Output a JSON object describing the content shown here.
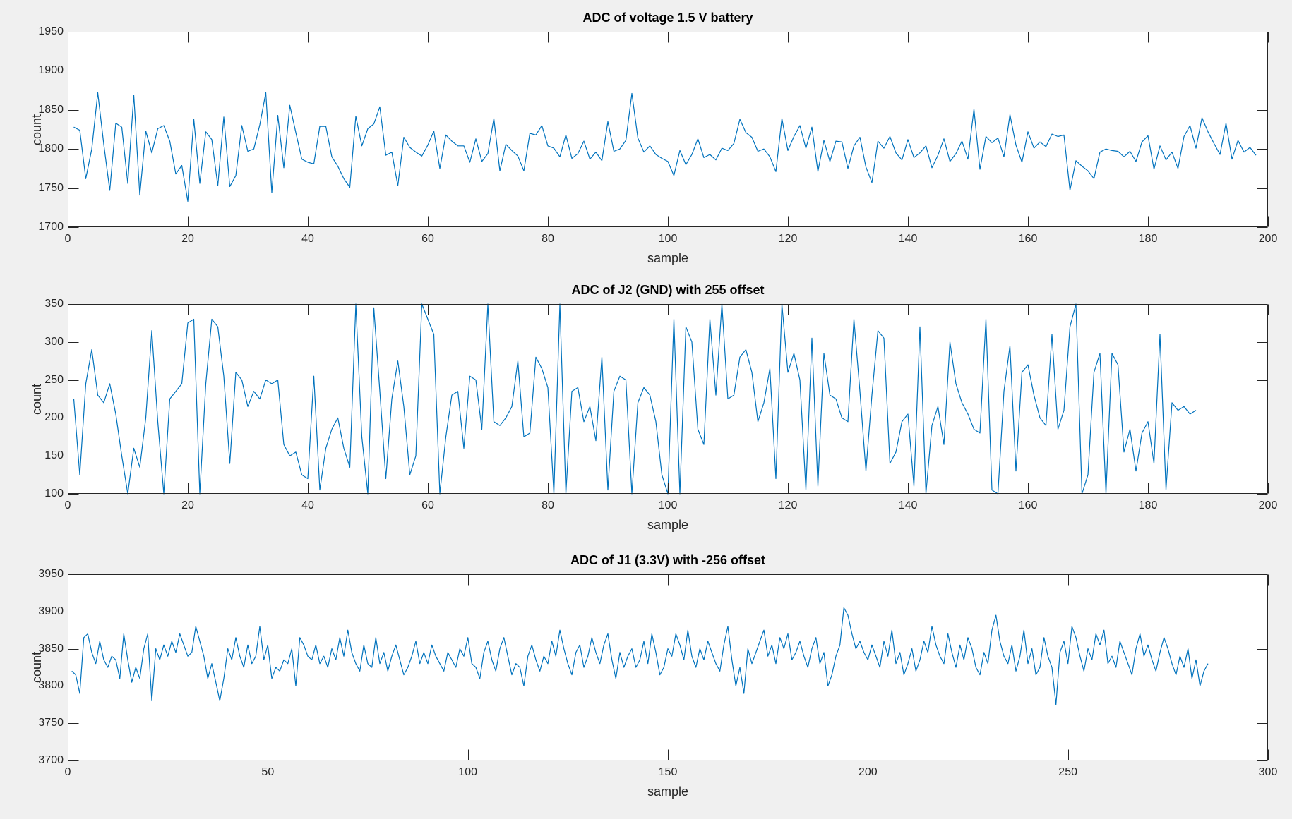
{
  "figure": {
    "background_color": "#f0f0f0",
    "axes_background_color": "#ffffff",
    "axes_line_color": "#262626",
    "series_line_color": "#0072BD"
  },
  "chart_data": [
    {
      "type": "line",
      "title": "ADC of voltage 1.5 V battery",
      "xlabel": "sample",
      "ylabel": "count",
      "xlim": [
        0,
        200
      ],
      "ylim": [
        1700,
        1950
      ],
      "xticks": [
        0,
        20,
        40,
        60,
        80,
        100,
        120,
        140,
        160,
        180,
        200
      ],
      "yticks": [
        1700,
        1750,
        1800,
        1850,
        1900,
        1950
      ],
      "grid": false,
      "legend": null,
      "x_start": 1,
      "x_step": 1,
      "values": [
        1828,
        1824,
        1762,
        1800,
        1872,
        1806,
        1747,
        1833,
        1828,
        1756,
        1869,
        1741,
        1823,
        1795,
        1826,
        1830,
        1810,
        1768,
        1779,
        1733,
        1838,
        1756,
        1822,
        1812,
        1753,
        1841,
        1752,
        1766,
        1830,
        1797,
        1800,
        1831,
        1872,
        1744,
        1843,
        1776,
        1856,
        1821,
        1787,
        1783,
        1781,
        1829,
        1829,
        1790,
        1778,
        1762,
        1751,
        1842,
        1804,
        1826,
        1832,
        1854,
        1792,
        1796,
        1753,
        1815,
        1802,
        1796,
        1791,
        1805,
        1823,
        1775,
        1818,
        1810,
        1804,
        1804,
        1783,
        1813,
        1784,
        1794,
        1839,
        1772,
        1806,
        1798,
        1791,
        1772,
        1820,
        1818,
        1830,
        1804,
        1801,
        1790,
        1818,
        1788,
        1794,
        1810,
        1787,
        1796,
        1785,
        1835,
        1797,
        1800,
        1811,
        1871,
        1814,
        1796,
        1804,
        1793,
        1788,
        1784,
        1766,
        1798,
        1780,
        1793,
        1813,
        1789,
        1793,
        1786,
        1801,
        1798,
        1807,
        1838,
        1821,
        1815,
        1797,
        1800,
        1790,
        1771,
        1839,
        1798,
        1816,
        1830,
        1801,
        1828,
        1771,
        1811,
        1784,
        1810,
        1809,
        1775,
        1804,
        1815,
        1777,
        1757,
        1810,
        1801,
        1816,
        1795,
        1786,
        1812,
        1789,
        1795,
        1804,
        1776,
        1792,
        1813,
        1784,
        1794,
        1810,
        1787,
        1851,
        1774,
        1816,
        1808,
        1814,
        1790,
        1844,
        1805,
        1783,
        1822,
        1801,
        1809,
        1803,
        1819,
        1816,
        1818,
        1747,
        1785,
        1778,
        1772,
        1762,
        1796,
        1800,
        1798,
        1797,
        1790,
        1797,
        1784,
        1809,
        1817,
        1774,
        1804,
        1786,
        1796,
        1775,
        1816,
        1830,
        1801,
        1840,
        1822,
        1807,
        1793,
        1833,
        1787,
        1811,
        1796,
        1802,
        1792
      ]
    },
    {
      "type": "line",
      "title": "ADC of J2 (GND) with 255 offset",
      "xlabel": "sample",
      "ylabel": "count",
      "xlim": [
        0,
        200
      ],
      "ylim": [
        100,
        350
      ],
      "xticks": [
        0,
        20,
        40,
        60,
        80,
        100,
        120,
        140,
        160,
        180,
        200
      ],
      "yticks": [
        100,
        150,
        200,
        250,
        300,
        350
      ],
      "grid": false,
      "legend": null,
      "x_start": 1,
      "x_step": 1,
      "values": [
        225,
        125,
        245,
        290,
        230,
        220,
        245,
        205,
        150,
        100,
        160,
        135,
        200,
        315,
        195,
        100,
        225,
        235,
        245,
        325,
        330,
        100,
        245,
        330,
        320,
        255,
        140,
        260,
        250,
        215,
        235,
        225,
        250,
        245,
        250,
        165,
        150,
        155,
        125,
        120,
        255,
        105,
        160,
        185,
        200,
        160,
        135,
        350,
        175,
        100,
        345,
        235,
        120,
        225,
        275,
        215,
        125,
        150,
        350,
        330,
        310,
        100,
        175,
        230,
        235,
        160,
        255,
        250,
        185,
        350,
        195,
        190,
        200,
        215,
        275,
        175,
        180,
        280,
        265,
        240,
        100,
        350,
        100,
        235,
        240,
        195,
        215,
        170,
        280,
        105,
        235,
        255,
        250,
        100,
        220,
        240,
        230,
        195,
        125,
        100,
        330,
        100,
        320,
        300,
        185,
        165,
        330,
        230,
        350,
        225,
        230,
        280,
        290,
        260,
        195,
        220,
        265,
        120,
        350,
        260,
        285,
        250,
        105,
        305,
        110,
        285,
        230,
        225,
        200,
        195,
        330,
        235,
        130,
        230,
        315,
        305,
        140,
        155,
        195,
        205,
        110,
        320,
        100,
        190,
        215,
        165,
        300,
        245,
        220,
        205,
        185,
        180,
        330,
        105,
        100,
        235,
        295,
        130,
        260,
        270,
        230,
        200,
        190,
        310,
        185,
        210,
        320,
        350,
        100,
        125,
        260,
        285,
        100,
        285,
        270,
        155,
        185,
        130,
        180,
        195,
        140,
        310,
        105,
        220,
        210,
        215,
        205,
        210
      ]
    },
    {
      "type": "line",
      "title": "ADC of J1 (3.3V) with -256 offset",
      "xlabel": "sample",
      "ylabel": "count",
      "xlim": [
        0,
        300
      ],
      "ylim": [
        3700,
        3950
      ],
      "xticks": [
        0,
        50,
        100,
        150,
        200,
        250,
        300
      ],
      "yticks": [
        3700,
        3750,
        3800,
        3850,
        3900,
        3950
      ],
      "grid": false,
      "legend": null,
      "x_start": 1,
      "x_step": 1,
      "values": [
        3820,
        3815,
        3790,
        3865,
        3870,
        3845,
        3830,
        3860,
        3835,
        3825,
        3840,
        3835,
        3810,
        3870,
        3835,
        3805,
        3825,
        3810,
        3850,
        3870,
        3780,
        3850,
        3835,
        3855,
        3840,
        3860,
        3845,
        3870,
        3855,
        3840,
        3845,
        3880,
        3860,
        3840,
        3810,
        3830,
        3805,
        3780,
        3810,
        3850,
        3835,
        3865,
        3840,
        3825,
        3855,
        3830,
        3840,
        3880,
        3835,
        3855,
        3810,
        3825,
        3820,
        3835,
        3830,
        3850,
        3800,
        3865,
        3855,
        3840,
        3835,
        3855,
        3830,
        3840,
        3825,
        3850,
        3835,
        3865,
        3840,
        3875,
        3845,
        3830,
        3820,
        3855,
        3830,
        3825,
        3865,
        3830,
        3845,
        3820,
        3840,
        3855,
        3835,
        3815,
        3825,
        3840,
        3860,
        3830,
        3845,
        3830,
        3855,
        3840,
        3830,
        3820,
        3845,
        3835,
        3825,
        3850,
        3840,
        3865,
        3830,
        3825,
        3810,
        3845,
        3860,
        3835,
        3820,
        3850,
        3865,
        3840,
        3815,
        3830,
        3825,
        3800,
        3840,
        3855,
        3835,
        3820,
        3840,
        3830,
        3860,
        3840,
        3875,
        3850,
        3830,
        3815,
        3845,
        3855,
        3825,
        3840,
        3865,
        3845,
        3830,
        3855,
        3870,
        3835,
        3810,
        3845,
        3825,
        3840,
        3850,
        3825,
        3835,
        3860,
        3830,
        3870,
        3845,
        3815,
        3825,
        3850,
        3840,
        3870,
        3855,
        3835,
        3875,
        3840,
        3825,
        3850,
        3835,
        3860,
        3845,
        3830,
        3820,
        3855,
        3880,
        3835,
        3800,
        3825,
        3790,
        3850,
        3830,
        3845,
        3860,
        3875,
        3840,
        3855,
        3830,
        3865,
        3850,
        3870,
        3835,
        3845,
        3860,
        3840,
        3825,
        3850,
        3865,
        3830,
        3845,
        3800,
        3815,
        3840,
        3855,
        3905,
        3895,
        3870,
        3850,
        3860,
        3845,
        3835,
        3855,
        3840,
        3825,
        3860,
        3840,
        3875,
        3830,
        3845,
        3815,
        3830,
        3850,
        3820,
        3835,
        3860,
        3845,
        3880,
        3855,
        3840,
        3830,
        3870,
        3845,
        3825,
        3855,
        3835,
        3865,
        3850,
        3825,
        3815,
        3845,
        3830,
        3875,
        3895,
        3860,
        3840,
        3830,
        3855,
        3820,
        3840,
        3875,
        3830,
        3850,
        3815,
        3825,
        3865,
        3840,
        3825,
        3775,
        3845,
        3860,
        3830,
        3880,
        3865,
        3840,
        3820,
        3850,
        3835,
        3870,
        3855,
        3875,
        3830,
        3840,
        3825,
        3860,
        3845,
        3830,
        3815,
        3850,
        3870,
        3840,
        3855,
        3835,
        3820,
        3845,
        3865,
        3850,
        3830,
        3815,
        3840,
        3825,
        3850,
        3810,
        3835,
        3800,
        3820,
        3830
      ]
    }
  ]
}
